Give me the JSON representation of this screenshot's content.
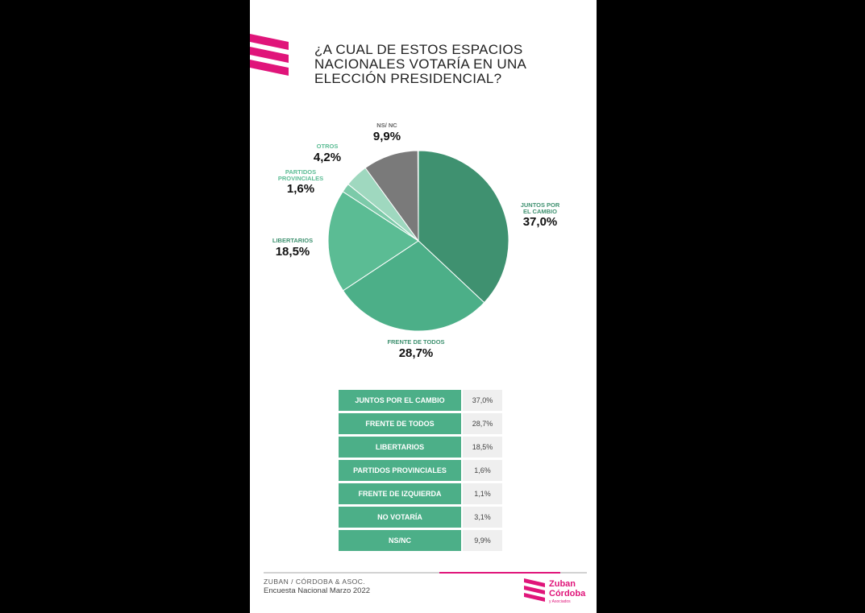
{
  "chart_data": {
    "type": "pie",
    "title": "¿A CUAL DE ESTOS ESPACIOS NACIONALES VOTARÍA EN UNA ELECCIÓN PRESIDENCIAL?",
    "categories": [
      "JUNTOS POR EL CAMBIO",
      "FRENTE DE TODOS",
      "LIBERTARIOS",
      "PARTIDOS PROVINCIALES",
      "OTROS",
      "NS/ NC"
    ],
    "values": [
      37.0,
      28.7,
      18.5,
      1.6,
      4.2,
      9.9
    ],
    "value_labels": [
      "37,0%",
      "28,7%",
      "18,5%",
      "1,6%",
      "4,2%",
      "9,9%"
    ],
    "colors": [
      "#3f9170",
      "#4caf88",
      "#5bbc94",
      "#7ccaa9",
      "#9fd8bf",
      "#7a7a7a"
    ]
  },
  "table": {
    "rows": [
      [
        "JUNTOS POR EL CAMBIO",
        "37,0%"
      ],
      [
        "FRENTE DE TODOS",
        "28,7%"
      ],
      [
        "LIBERTARIOS",
        "18,5%"
      ],
      [
        "PARTIDOS PROVINCIALES",
        "1,6%"
      ],
      [
        "FRENTE DE IZQUIERDA",
        "1,1%"
      ],
      [
        "NO VOTARÍA",
        "3,1%"
      ],
      [
        "NS/NC",
        "9,9%"
      ]
    ]
  },
  "footer": {
    "source": "ZUBAN / CÓRDOBA & ASOC.",
    "survey": "Encuesta Nacional Marzo 2022",
    "logo": [
      "Zuban",
      "Córdoba",
      "y Asociados"
    ]
  }
}
